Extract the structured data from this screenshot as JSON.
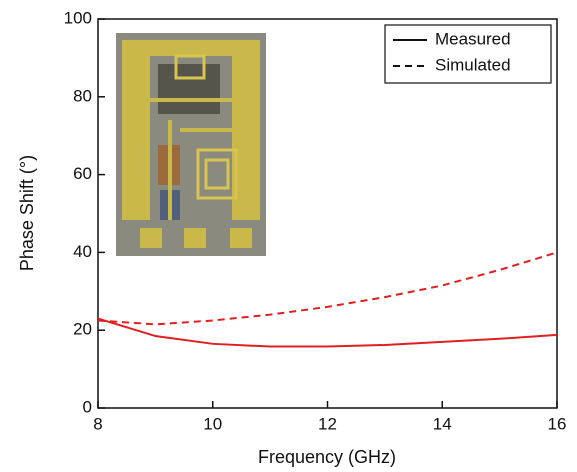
{
  "chart_data": {
    "type": "line",
    "x_label": "Frequency (GHz)",
    "y_label": "Phase Shift (°)",
    "x": [
      8,
      9,
      10,
      11,
      12,
      13,
      14,
      15,
      16
    ],
    "series": [
      {
        "name": "Measured",
        "color": "#e02020",
        "dash": false,
        "values": [
          23,
          18.5,
          16.5,
          15.8,
          15.8,
          16.2,
          17,
          17.8,
          18.8
        ]
      },
      {
        "name": "Simulated",
        "color": "#e02020",
        "dash": true,
        "values": [
          22.5,
          21.5,
          22.5,
          24,
          26,
          28.5,
          31.5,
          35.5,
          40
        ]
      }
    ],
    "xlim": [
      8,
      16
    ],
    "xticks": [
      8,
      10,
      12,
      14,
      16
    ],
    "ylim": [
      0,
      100
    ],
    "yticks": [
      0,
      20,
      40,
      60,
      80,
      100
    ],
    "legend": "upper right"
  }
}
